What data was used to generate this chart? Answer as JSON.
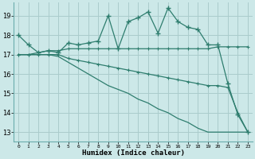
{
  "title": "",
  "xlabel": "Humidex (Indice chaleur)",
  "x": [
    0,
    1,
    2,
    3,
    4,
    5,
    6,
    7,
    8,
    9,
    10,
    11,
    12,
    13,
    14,
    15,
    16,
    17,
    18,
    19,
    20,
    21,
    22,
    23
  ],
  "line1": [
    18.0,
    17.5,
    17.1,
    17.2,
    17.1,
    17.6,
    17.5,
    17.6,
    17.7,
    19.0,
    17.3,
    18.7,
    18.9,
    19.2,
    18.1,
    19.4,
    18.7,
    18.4,
    18.3,
    17.5,
    17.5,
    15.5,
    13.9,
    13.0
  ],
  "line2": [
    17.0,
    17.0,
    17.1,
    17.2,
    17.2,
    17.3,
    17.3,
    17.3,
    17.3,
    17.3,
    17.3,
    17.3,
    17.3,
    17.3,
    17.3,
    17.3,
    17.3,
    17.3,
    17.3,
    17.3,
    17.4,
    17.4,
    17.4,
    17.4
  ],
  "line3": [
    17.0,
    17.0,
    17.0,
    17.0,
    17.0,
    16.8,
    16.7,
    16.6,
    16.5,
    16.4,
    16.3,
    16.2,
    16.1,
    16.0,
    15.9,
    15.8,
    15.7,
    15.6,
    15.5,
    15.4,
    15.4,
    15.3,
    14.0,
    13.0
  ],
  "line4": [
    17.0,
    17.0,
    17.0,
    17.0,
    16.9,
    16.6,
    16.3,
    16.0,
    15.7,
    15.4,
    15.2,
    15.0,
    14.7,
    14.5,
    14.2,
    14.0,
    13.7,
    13.5,
    13.2,
    13.0,
    13.0,
    13.0,
    13.0,
    13.0
  ],
  "color": "#2e7d6e",
  "bg_color": "#cce8e8",
  "grid_color": "#aacccc",
  "ylim": [
    12.5,
    19.7
  ],
  "yticks": [
    13,
    14,
    15,
    16,
    17,
    18,
    19
  ],
  "xlim": [
    -0.5,
    23.5
  ]
}
